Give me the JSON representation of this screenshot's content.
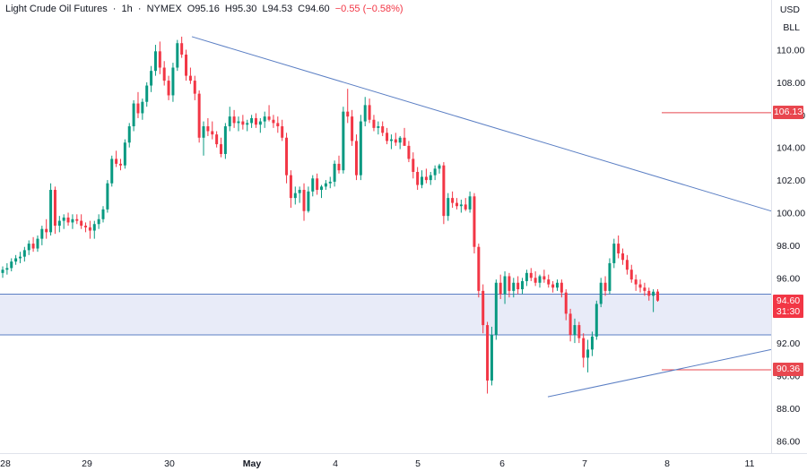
{
  "header": {
    "symbol": "Light Crude Oil Futures",
    "interval": "1h",
    "exchange": "NYMEX",
    "open": "O95.16",
    "high": "H95.30",
    "low": "L94.53",
    "close": "C94.60",
    "change": "−0.55 (−0.58%)"
  },
  "currency": "USD",
  "unit": "BLL",
  "colors": {
    "up": "#089981",
    "down": "#f23645",
    "trendline": "#5b7fc4",
    "zone_fill": "#e8ebf8",
    "zone_border": "#5b7fc4",
    "level_line": "#e8474f"
  },
  "tags": {
    "level_high": "106.13",
    "price": "94.60",
    "countdown": "31:30",
    "level_low": "90.36"
  },
  "chart_data": {
    "type": "candlestick",
    "x_ticks": [
      "28",
      "29",
      "30",
      "May",
      "4",
      "5",
      "6",
      "7",
      "8",
      "11"
    ],
    "y_ticks": [
      "110.00",
      "108.00",
      "106.00",
      "104.00",
      "102.00",
      "100.00",
      "98.00",
      "96.00",
      "94.00",
      "92.00",
      "90.00",
      "88.00",
      "86.00"
    ],
    "ylim": [
      85.2,
      111.5
    ],
    "horizontal_levels": [
      106.13,
      90.36
    ],
    "zone": [
      92.5,
      95.0
    ],
    "descending_trendline": {
      "from": [
        "30",
        110.8
      ],
      "to": [
        "11",
        100.1
      ]
    },
    "ascending_trendline": {
      "from": [
        "7",
        88.7
      ],
      "to": [
        "11",
        91.6
      ]
    },
    "candles": [
      [
        96.3,
        96.7,
        96.0,
        96.5
      ],
      [
        96.5,
        96.9,
        96.2,
        96.6
      ],
      [
        96.6,
        97.2,
        96.4,
        97.0
      ],
      [
        97.0,
        97.4,
        96.8,
        97.2
      ],
      [
        97.2,
        97.6,
        96.9,
        97.3
      ],
      [
        97.3,
        97.9,
        97.0,
        97.7
      ],
      [
        97.7,
        98.3,
        97.4,
        98.1
      ],
      [
        98.1,
        98.5,
        97.6,
        97.8
      ],
      [
        97.8,
        98.6,
        97.6,
        98.4
      ],
      [
        98.4,
        99.2,
        98.0,
        99.0
      ],
      [
        99.0,
        99.6,
        98.4,
        98.8
      ],
      [
        98.8,
        101.8,
        98.6,
        101.4
      ],
      [
        101.4,
        101.6,
        98.7,
        99.2
      ],
      [
        99.2,
        99.8,
        98.8,
        99.5
      ],
      [
        99.5,
        99.9,
        99.0,
        99.7
      ],
      [
        99.7,
        100.0,
        99.2,
        99.4
      ],
      [
        99.4,
        99.9,
        99.0,
        99.6
      ],
      [
        99.6,
        99.9,
        99.3,
        99.5
      ],
      [
        99.5,
        99.9,
        99.0,
        99.2
      ],
      [
        99.2,
        99.4,
        98.8,
        99.1
      ],
      [
        99.1,
        99.5,
        98.4,
        98.9
      ],
      [
        98.9,
        99.5,
        98.4,
        99.3
      ],
      [
        99.3,
        99.9,
        99.0,
        99.6
      ],
      [
        99.6,
        100.4,
        99.4,
        100.2
      ],
      [
        100.2,
        102.0,
        100.0,
        101.8
      ],
      [
        101.8,
        103.5,
        101.6,
        103.3
      ],
      [
        103.3,
        103.8,
        102.8,
        103.0
      ],
      [
        103.0,
        103.3,
        102.6,
        102.9
      ],
      [
        102.9,
        104.5,
        102.7,
        104.3
      ],
      [
        104.3,
        105.5,
        104.0,
        105.3
      ],
      [
        105.3,
        106.9,
        105.0,
        106.7
      ],
      [
        106.7,
        107.4,
        105.8,
        106.1
      ],
      [
        106.1,
        107.0,
        105.7,
        106.8
      ],
      [
        106.8,
        108.0,
        106.5,
        107.8
      ],
      [
        107.8,
        109.0,
        107.4,
        108.7
      ],
      [
        108.7,
        110.3,
        108.4,
        109.9
      ],
      [
        109.9,
        110.5,
        108.5,
        108.9
      ],
      [
        108.9,
        109.3,
        107.8,
        108.1
      ],
      [
        108.1,
        108.4,
        106.9,
        107.2
      ],
      [
        107.2,
        109.2,
        106.8,
        108.9
      ],
      [
        108.9,
        110.6,
        108.7,
        110.4
      ],
      [
        110.4,
        110.8,
        109.5,
        109.7
      ],
      [
        109.7,
        110.0,
        108.1,
        108.4
      ],
      [
        108.4,
        108.9,
        107.9,
        108.1
      ],
      [
        108.1,
        108.4,
        106.9,
        107.3
      ],
      [
        107.3,
        107.5,
        104.3,
        104.6
      ],
      [
        104.6,
        105.6,
        103.5,
        105.3
      ],
      [
        105.3,
        105.8,
        104.7,
        105.0
      ],
      [
        105.0,
        105.6,
        104.5,
        104.8
      ],
      [
        104.8,
        105.0,
        104.0,
        104.2
      ],
      [
        104.2,
        104.6,
        103.4,
        103.6
      ],
      [
        103.6,
        105.5,
        103.3,
        105.3
      ],
      [
        105.3,
        106.5,
        105.0,
        105.9
      ],
      [
        105.9,
        106.3,
        105.2,
        105.5
      ],
      [
        105.5,
        105.9,
        105.0,
        105.6
      ],
      [
        105.6,
        106.0,
        105.1,
        105.4
      ],
      [
        105.4,
        105.7,
        105.0,
        105.5
      ],
      [
        105.5,
        106.0,
        105.2,
        105.8
      ],
      [
        105.8,
        106.1,
        105.2,
        105.4
      ],
      [
        105.4,
        105.8,
        104.9,
        105.6
      ],
      [
        105.6,
        106.2,
        105.2,
        105.9
      ],
      [
        105.9,
        106.6,
        105.6,
        105.7
      ],
      [
        105.7,
        106.0,
        105.2,
        105.5
      ],
      [
        105.5,
        105.9,
        104.9,
        105.3
      ],
      [
        105.3,
        105.7,
        104.4,
        104.6
      ],
      [
        104.6,
        104.9,
        101.8,
        102.3
      ],
      [
        102.3,
        102.6,
        100.3,
        100.9
      ],
      [
        100.9,
        101.6,
        100.5,
        101.2
      ],
      [
        101.2,
        101.6,
        100.6,
        101.4
      ],
      [
        101.4,
        101.8,
        99.5,
        100.1
      ],
      [
        100.1,
        101.6,
        100.0,
        101.3
      ],
      [
        101.3,
        102.3,
        101.0,
        102.1
      ],
      [
        102.1,
        102.4,
        101.1,
        101.4
      ],
      [
        101.4,
        101.7,
        100.9,
        101.6
      ],
      [
        101.6,
        102.0,
        101.4,
        101.8
      ],
      [
        101.8,
        102.2,
        101.5,
        101.9
      ],
      [
        101.9,
        103.2,
        101.6,
        103.0
      ],
      [
        103.0,
        103.5,
        102.4,
        102.6
      ],
      [
        102.6,
        106.5,
        102.4,
        106.2
      ],
      [
        106.2,
        107.6,
        105.5,
        105.9
      ],
      [
        105.9,
        106.3,
        104.1,
        104.4
      ],
      [
        104.4,
        104.8,
        102.0,
        102.3
      ],
      [
        102.3,
        106.0,
        102.0,
        105.6
      ],
      [
        105.6,
        107.1,
        105.3,
        106.6
      ],
      [
        106.6,
        107.0,
        105.5,
        105.7
      ],
      [
        105.7,
        106.0,
        105.0,
        105.2
      ],
      [
        105.2,
        105.6,
        104.8,
        105.3
      ],
      [
        105.3,
        105.6,
        104.7,
        104.9
      ],
      [
        104.9,
        105.2,
        104.2,
        104.4
      ],
      [
        104.4,
        104.8,
        103.9,
        104.5
      ],
      [
        104.5,
        104.9,
        104.1,
        104.3
      ],
      [
        104.3,
        104.7,
        103.9,
        104.6
      ],
      [
        104.6,
        105.2,
        104.3,
        104.1
      ],
      [
        104.1,
        104.4,
        103.1,
        103.3
      ],
      [
        103.3,
        103.7,
        102.1,
        102.5
      ],
      [
        102.5,
        102.8,
        101.4,
        101.7
      ],
      [
        101.7,
        102.6,
        101.5,
        102.2
      ],
      [
        102.2,
        102.7,
        101.8,
        102.0
      ],
      [
        102.0,
        102.5,
        101.7,
        102.3
      ],
      [
        102.3,
        102.9,
        102.0,
        102.7
      ],
      [
        102.7,
        103.0,
        102.4,
        102.9
      ],
      [
        102.9,
        103.1,
        99.3,
        99.8
      ],
      [
        99.8,
        101.2,
        99.5,
        100.9
      ],
      [
        100.9,
        101.3,
        100.3,
        100.6
      ],
      [
        100.6,
        100.9,
        100.2,
        100.4
      ],
      [
        100.4,
        100.8,
        100.0,
        100.5
      ],
      [
        100.5,
        100.9,
        100.1,
        100.2
      ],
      [
        100.2,
        101.3,
        100.0,
        101.0
      ],
      [
        101.0,
        101.2,
        97.5,
        97.9
      ],
      [
        97.9,
        98.1,
        94.8,
        95.2
      ],
      [
        95.2,
        95.6,
        92.6,
        93.1
      ],
      [
        93.1,
        93.3,
        88.9,
        89.7
      ],
      [
        89.7,
        93.0,
        89.4,
        92.5
      ],
      [
        92.5,
        95.9,
        92.2,
        95.7
      ],
      [
        95.7,
        96.2,
        94.7,
        95.0
      ],
      [
        95.0,
        96.4,
        94.4,
        96.1
      ],
      [
        96.1,
        96.3,
        94.8,
        95.2
      ],
      [
        95.2,
        96.0,
        94.8,
        95.7
      ],
      [
        95.7,
        96.1,
        95.0,
        95.3
      ],
      [
        95.3,
        96.0,
        95.0,
        95.8
      ],
      [
        95.8,
        96.5,
        95.5,
        96.3
      ],
      [
        96.3,
        96.6,
        95.8,
        96.0
      ],
      [
        96.0,
        96.4,
        95.5,
        95.7
      ],
      [
        95.7,
        96.2,
        95.4,
        96.1
      ],
      [
        96.1,
        96.5,
        95.7,
        95.9
      ],
      [
        95.9,
        96.2,
        95.4,
        95.6
      ],
      [
        95.6,
        95.8,
        95.1,
        95.4
      ],
      [
        95.4,
        95.9,
        95.2,
        95.7
      ],
      [
        95.7,
        95.9,
        94.8,
        95.1
      ],
      [
        95.1,
        95.3,
        93.4,
        93.8
      ],
      [
        93.8,
        94.1,
        92.1,
        92.5
      ],
      [
        92.5,
        93.5,
        92.0,
        93.1
      ],
      [
        93.1,
        93.3,
        92.0,
        92.3
      ],
      [
        92.3,
        92.6,
        90.5,
        91.1
      ],
      [
        91.1,
        92.2,
        90.2,
        91.6
      ],
      [
        91.6,
        92.7,
        91.2,
        92.4
      ],
      [
        92.4,
        94.6,
        92.2,
        94.4
      ],
      [
        94.4,
        96.0,
        94.2,
        95.7
      ],
      [
        95.7,
        96.1,
        94.9,
        95.2
      ],
      [
        95.2,
        97.2,
        95.0,
        96.9
      ],
      [
        96.9,
        98.4,
        96.6,
        98.1
      ],
      [
        98.1,
        98.6,
        97.2,
        97.5
      ],
      [
        97.5,
        97.8,
        96.8,
        97.1
      ],
      [
        97.1,
        97.4,
        96.2,
        96.5
      ],
      [
        96.5,
        96.8,
        95.7,
        95.9
      ],
      [
        95.9,
        96.2,
        95.2,
        95.6
      ],
      [
        95.6,
        95.9,
        95.1,
        95.4
      ],
      [
        95.4,
        95.7,
        94.9,
        95.2
      ],
      [
        95.2,
        95.4,
        94.6,
        94.9
      ],
      [
        94.9,
        95.3,
        93.9,
        95.15
      ],
      [
        95.16,
        95.3,
        94.53,
        94.6
      ]
    ]
  }
}
